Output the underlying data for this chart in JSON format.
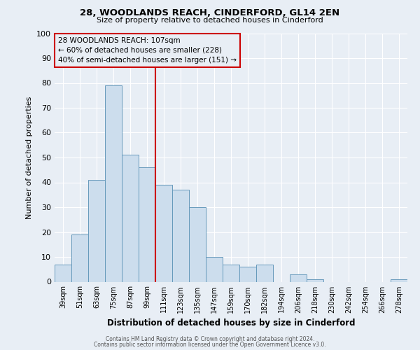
{
  "title1": "28, WOODLANDS REACH, CINDERFORD, GL14 2EN",
  "title2": "Size of property relative to detached houses in Cinderford",
  "xlabel": "Distribution of detached houses by size in Cinderford",
  "ylabel": "Number of detached properties",
  "bar_labels": [
    "39sqm",
    "51sqm",
    "63sqm",
    "75sqm",
    "87sqm",
    "99sqm",
    "111sqm",
    "123sqm",
    "135sqm",
    "147sqm",
    "159sqm",
    "170sqm",
    "182sqm",
    "194sqm",
    "206sqm",
    "218sqm",
    "230sqm",
    "242sqm",
    "254sqm",
    "266sqm",
    "278sqm"
  ],
  "bar_values": [
    7,
    19,
    41,
    79,
    51,
    46,
    39,
    37,
    30,
    10,
    7,
    6,
    7,
    0,
    3,
    1,
    0,
    0,
    0,
    0,
    1
  ],
  "bar_color": "#ccdded",
  "bar_edge_color": "#6699bb",
  "vline_color": "#cc0000",
  "ylim": [
    0,
    100
  ],
  "annotation_box_text": "28 WOODLANDS REACH: 107sqm\n← 60% of detached houses are smaller (228)\n40% of semi-detached houses are larger (151) →",
  "annotation_box_edge_color": "#cc0000",
  "background_color": "#e8eef5",
  "footer1": "Contains HM Land Registry data © Crown copyright and database right 2024.",
  "footer2": "Contains public sector information licensed under the Open Government Licence v3.0."
}
